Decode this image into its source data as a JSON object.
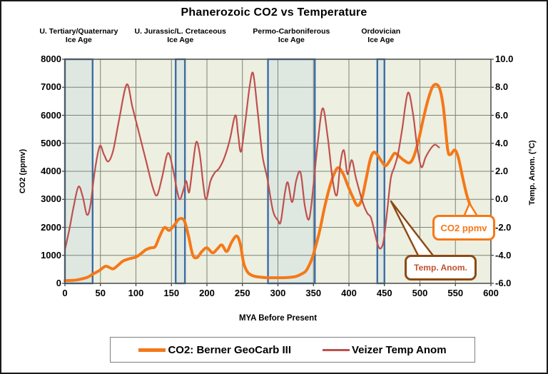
{
  "chart_data": {
    "type": "line",
    "title": "Phanerozoic CO2 vs Temperature",
    "xlabel": "MYA Before Present",
    "x_range": [
      0,
      600
    ],
    "x_ticks": [
      0,
      50,
      100,
      150,
      200,
      250,
      300,
      350,
      400,
      450,
      500,
      550,
      600
    ],
    "y_left": {
      "label": "CO2 (ppmv)",
      "range": [
        0,
        8000
      ],
      "ticks": [
        "8000",
        "7000",
        "6000",
        "5000",
        "4000",
        "3000",
        "2000",
        "1000",
        "0"
      ]
    },
    "y_right": {
      "label": "Temp. Anom. (°C)",
      "range": [
        -6,
        10
      ],
      "ticks": [
        "10.0",
        "8.0",
        "6.0",
        "4.0",
        "2.0",
        "0.0",
        "-2.0",
        "-4.0",
        "-6.0"
      ]
    },
    "grid": true,
    "legend_position": "bottom",
    "colors": {
      "plot_bg": "#EDEFE0",
      "grid": "#7D8476",
      "plot_border": "#555555",
      "band_fill": "#DEE8E1",
      "band_stroke": "#3D6CA5",
      "co2": "#F57818",
      "temp": "#C0504D",
      "co2_callout": "#F57818",
      "temp_callout_border": "#8C4A15",
      "temp_callout_text": "#C0512E"
    },
    "ice_age_suffix": "Ice Age",
    "ice_age_bands": [
      {
        "name": "U. Tertiary/Quaternary",
        "from": 0,
        "to": 39
      },
      {
        "name": "U. Jurassic/L. Cretaceous",
        "from": 156,
        "to": 169
      },
      {
        "name": "Permo-Carboniferous",
        "from": 286,
        "to": 352
      },
      {
        "name": "Ordovician",
        "from": 440,
        "to": 450
      }
    ],
    "annotations": [
      {
        "text": "CO2 ppmv",
        "series": "co2"
      },
      {
        "text": "Temp. Anom.",
        "series": "temp"
      }
    ],
    "series": [
      {
        "name": "CO2: Berner GeoCarb III",
        "axis": "left",
        "color": "#F57818",
        "width": 4,
        "points": [
          [
            0,
            100
          ],
          [
            8,
            105
          ],
          [
            16,
            120
          ],
          [
            24,
            160
          ],
          [
            32,
            220
          ],
          [
            40,
            340
          ],
          [
            48,
            450
          ],
          [
            57,
            610
          ],
          [
            63,
            560
          ],
          [
            68,
            520
          ],
          [
            75,
            650
          ],
          [
            82,
            800
          ],
          [
            91,
            880
          ],
          [
            100,
            940
          ],
          [
            107,
            1060
          ],
          [
            114,
            1200
          ],
          [
            121,
            1270
          ],
          [
            127,
            1310
          ],
          [
            133,
            1650
          ],
          [
            140,
            1990
          ],
          [
            147,
            1890
          ],
          [
            154,
            2080
          ],
          [
            161,
            2300
          ],
          [
            168,
            2240
          ],
          [
            174,
            1700
          ],
          [
            180,
            1020
          ],
          [
            186,
            920
          ],
          [
            193,
            1140
          ],
          [
            200,
            1270
          ],
          [
            208,
            1090
          ],
          [
            215,
            1240
          ],
          [
            221,
            1370
          ],
          [
            228,
            1140
          ],
          [
            235,
            1480
          ],
          [
            242,
            1690
          ],
          [
            247,
            1400
          ],
          [
            252,
            700
          ],
          [
            258,
            380
          ],
          [
            266,
            260
          ],
          [
            276,
            220
          ],
          [
            286,
            200
          ],
          [
            296,
            200
          ],
          [
            306,
            200
          ],
          [
            316,
            215
          ],
          [
            325,
            245
          ],
          [
            333,
            330
          ],
          [
            340,
            460
          ],
          [
            347,
            820
          ],
          [
            353,
            1300
          ],
          [
            359,
            1900
          ],
          [
            366,
            2750
          ],
          [
            373,
            3450
          ],
          [
            379,
            3900
          ],
          [
            385,
            4130
          ],
          [
            392,
            3900
          ],
          [
            398,
            3520
          ],
          [
            405,
            3100
          ],
          [
            412,
            2780
          ],
          [
            418,
            3000
          ],
          [
            424,
            3700
          ],
          [
            430,
            4420
          ],
          [
            435,
            4680
          ],
          [
            441,
            4550
          ],
          [
            447,
            4320
          ],
          [
            452,
            4200
          ],
          [
            458,
            4400
          ],
          [
            464,
            4640
          ],
          [
            470,
            4550
          ],
          [
            477,
            4400
          ],
          [
            485,
            4300
          ],
          [
            491,
            4500
          ],
          [
            498,
            5100
          ],
          [
            505,
            5900
          ],
          [
            512,
            6600
          ],
          [
            519,
            7060
          ],
          [
            527,
            7000
          ],
          [
            533,
            6300
          ],
          [
            539,
            4800
          ],
          [
            543,
            4600
          ],
          [
            549,
            4760
          ],
          [
            554,
            4500
          ],
          [
            560,
            3800
          ],
          [
            566,
            3150
          ],
          [
            572,
            2700
          ]
        ]
      },
      {
        "name": "Veizer Temp Anom",
        "axis": "right",
        "color": "#C0504D",
        "width": 2.2,
        "points": [
          [
            0,
            -3.6
          ],
          [
            6,
            -2.2
          ],
          [
            12,
            -0.6
          ],
          [
            19,
            0.9
          ],
          [
            25,
            0.2
          ],
          [
            31,
            -1.1
          ],
          [
            36,
            -0.4
          ],
          [
            42,
            2.0
          ],
          [
            49,
            3.8
          ],
          [
            55,
            3.2
          ],
          [
            61,
            2.7
          ],
          [
            68,
            3.5
          ],
          [
            76,
            5.6
          ],
          [
            87,
            8.2
          ],
          [
            95,
            6.6
          ],
          [
            104,
            4.8
          ],
          [
            115,
            2.6
          ],
          [
            124,
            0.8
          ],
          [
            130,
            0.3
          ],
          [
            137,
            1.6
          ],
          [
            145,
            3.3
          ],
          [
            152,
            2.2
          ],
          [
            158,
            0.6
          ],
          [
            162,
            0.0
          ],
          [
            167,
            0.7
          ],
          [
            171,
            1.3
          ],
          [
            175,
            0.5
          ],
          [
            180,
            2.4
          ],
          [
            185,
            4.1
          ],
          [
            190,
            3.2
          ],
          [
            195,
            1.0
          ],
          [
            199,
            0.0
          ],
          [
            205,
            1.3
          ],
          [
            211,
            1.9
          ],
          [
            217,
            2.2
          ],
          [
            224,
            2.9
          ],
          [
            232,
            4.2
          ],
          [
            240,
            6.0
          ],
          [
            244,
            4.6
          ],
          [
            248,
            3.4
          ],
          [
            254,
            5.5
          ],
          [
            260,
            8.0
          ],
          [
            265,
            9.0
          ],
          [
            271,
            6.5
          ],
          [
            278,
            3.2
          ],
          [
            285,
            1.5
          ],
          [
            293,
            -0.8
          ],
          [
            300,
            -1.5
          ],
          [
            304,
            -1.6
          ],
          [
            310,
            0.5
          ],
          [
            314,
            1.2
          ],
          [
            320,
            -0.2
          ],
          [
            326,
            1.4
          ],
          [
            332,
            1.9
          ],
          [
            338,
            -0.5
          ],
          [
            344,
            -1.4
          ],
          [
            350,
            1.0
          ],
          [
            356,
            4.0
          ],
          [
            363,
            6.5
          ],
          [
            370,
            4.5
          ],
          [
            377,
            1.4
          ],
          [
            383,
            0.3
          ],
          [
            388,
            2.6
          ],
          [
            393,
            3.5
          ],
          [
            398,
            1.8
          ],
          [
            404,
            2.8
          ],
          [
            410,
            1.5
          ],
          [
            420,
            -0.3
          ],
          [
            426,
            -1.0
          ],
          [
            431,
            -1.3
          ],
          [
            436,
            -2.3
          ],
          [
            441,
            -3.3
          ],
          [
            445,
            -3.5
          ],
          [
            449,
            -2.9
          ],
          [
            454,
            -0.8
          ],
          [
            459,
            1.5
          ],
          [
            464,
            2.3
          ],
          [
            469,
            3.2
          ],
          [
            475,
            5.0
          ],
          [
            483,
            7.6
          ],
          [
            490,
            6.2
          ],
          [
            496,
            3.8
          ],
          [
            502,
            2.3
          ],
          [
            508,
            3.0
          ],
          [
            515,
            3.6
          ],
          [
            521,
            3.9
          ],
          [
            527,
            3.7
          ]
        ]
      }
    ]
  }
}
